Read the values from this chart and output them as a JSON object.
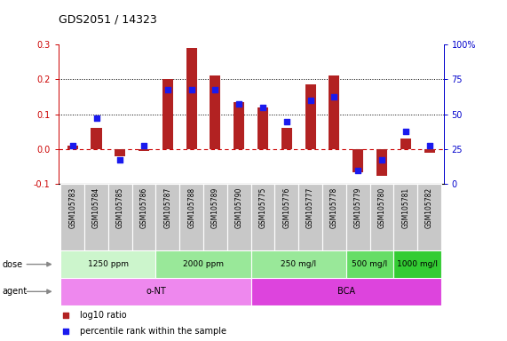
{
  "title": "GDS2051 / 14323",
  "samples": [
    "GSM105783",
    "GSM105784",
    "GSM105785",
    "GSM105786",
    "GSM105787",
    "GSM105788",
    "GSM105789",
    "GSM105790",
    "GSM105775",
    "GSM105776",
    "GSM105777",
    "GSM105778",
    "GSM105779",
    "GSM105780",
    "GSM105781",
    "GSM105782"
  ],
  "log10_ratio": [
    0.01,
    0.06,
    -0.02,
    -0.005,
    0.2,
    0.29,
    0.21,
    0.135,
    0.12,
    0.06,
    0.185,
    0.21,
    -0.065,
    -0.075,
    0.03,
    -0.01
  ],
  "percentile_rank_pct": [
    27.5,
    47.5,
    17.5,
    27.5,
    67.5,
    67.5,
    67.5,
    57.5,
    55.0,
    45.0,
    60.0,
    62.5,
    10.0,
    17.5,
    37.5,
    27.5
  ],
  "bar_color": "#b22222",
  "dot_color": "#1a1aee",
  "dose_groups": [
    {
      "label": "1250 ppm",
      "start": 0,
      "end": 4,
      "color": "#ccf5cc"
    },
    {
      "label": "2000 ppm",
      "start": 4,
      "end": 8,
      "color": "#99e899"
    },
    {
      "label": "250 mg/l",
      "start": 8,
      "end": 12,
      "color": "#99e899"
    },
    {
      "label": "500 mg/l",
      "start": 12,
      "end": 14,
      "color": "#66dd66"
    },
    {
      "label": "1000 mg/l",
      "start": 14,
      "end": 16,
      "color": "#33cc33"
    }
  ],
  "agent_groups": [
    {
      "label": "o-NT",
      "start": 0,
      "end": 8,
      "color": "#ee88ee"
    },
    {
      "label": "BCA",
      "start": 8,
      "end": 16,
      "color": "#dd44dd"
    }
  ],
  "ylim_left": [
    -0.1,
    0.3
  ],
  "ylim_right": [
    0,
    100
  ],
  "yticks_left": [
    -0.1,
    0.0,
    0.1,
    0.2,
    0.3
  ],
  "yticks_right": [
    0,
    25,
    50,
    75,
    100
  ],
  "left_tick_color": "#cc0000",
  "right_tick_color": "#0000cc",
  "hline_y": [
    0.1,
    0.2
  ],
  "zero_line_color": "#cc0000",
  "xlabel_bg_color": "#c8c8c8",
  "xlabel_border_color": "#ffffff"
}
